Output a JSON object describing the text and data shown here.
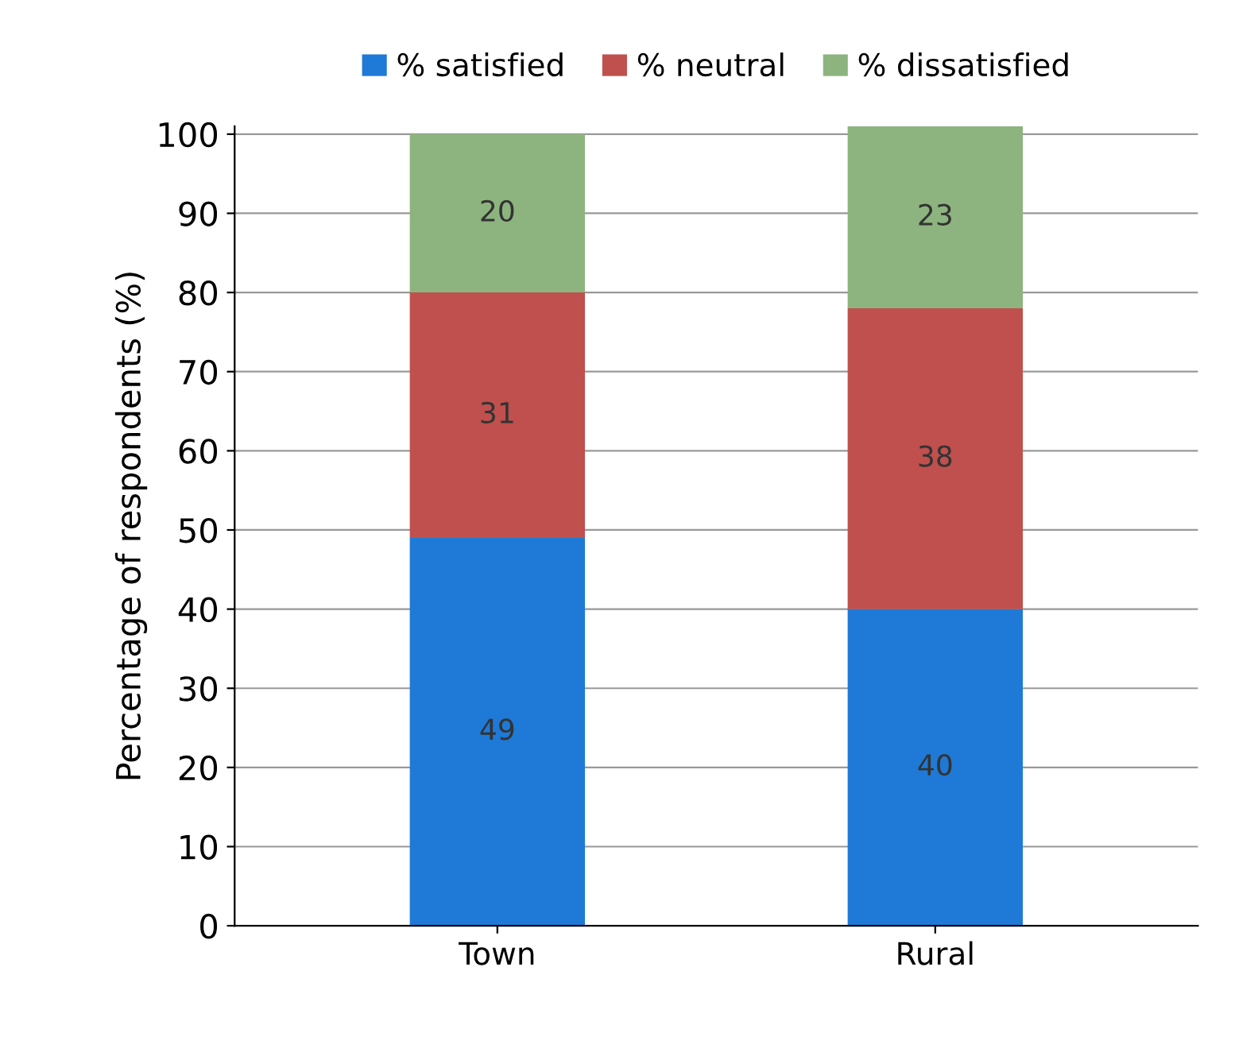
{
  "chart_data": {
    "type": "bar",
    "stacked": true,
    "ylabel": "Percentage of respondents (%)",
    "categories": [
      "Town",
      "Rural"
    ],
    "series": [
      {
        "name": "% satisfied",
        "color": "#1e7ad6",
        "values": [
          49,
          40
        ]
      },
      {
        "name": "% neutral",
        "color": "#c0504d",
        "values": [
          31,
          38
        ]
      },
      {
        "name": "% dissatisfied",
        "color": "#8db47e",
        "values": [
          20,
          23
        ]
      }
    ],
    "ylim": [
      0,
      101
    ],
    "yticks": [
      0,
      10,
      20,
      30,
      40,
      50,
      60,
      70,
      80,
      90,
      100
    ],
    "grid": "y",
    "legend": "top",
    "data_labels": true
  }
}
